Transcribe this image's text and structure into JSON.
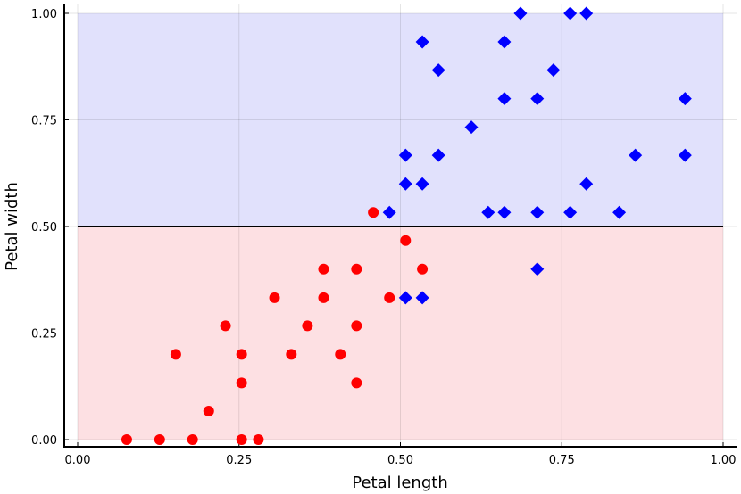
{
  "chart_data": {
    "type": "scatter",
    "xlabel": "Petal length",
    "ylabel": "Petal width",
    "xlim": [
      0,
      1
    ],
    "ylim": [
      0,
      1
    ],
    "xticks": [
      "0.00",
      "0.25",
      "0.50",
      "0.75",
      "1.00"
    ],
    "yticks": [
      "0.00",
      "0.25",
      "0.50",
      "0.75",
      "1.00"
    ],
    "grid": true,
    "decision_boundary_y": 0.5,
    "regions": [
      {
        "y_from": 0.5,
        "y_to": 1.0,
        "color": "#e1e1fc"
      },
      {
        "y_from": 0.0,
        "y_to": 0.5,
        "color": "#fde0e3"
      }
    ],
    "series": [
      {
        "marker": "circle",
        "color": "#ff0000",
        "points": [
          [
            0.076,
            0.0
          ],
          [
            0.127,
            0.0
          ],
          [
            0.178,
            0.0
          ],
          [
            0.254,
            0.0
          ],
          [
            0.28,
            0.0
          ],
          [
            0.203,
            0.067
          ],
          [
            0.254,
            0.133
          ],
          [
            0.432,
            0.133
          ],
          [
            0.152,
            0.2
          ],
          [
            0.254,
            0.2
          ],
          [
            0.331,
            0.2
          ],
          [
            0.407,
            0.2
          ],
          [
            0.229,
            0.267
          ],
          [
            0.356,
            0.267
          ],
          [
            0.432,
            0.267
          ],
          [
            0.305,
            0.333
          ],
          [
            0.381,
            0.333
          ],
          [
            0.483,
            0.333
          ],
          [
            0.381,
            0.4
          ],
          [
            0.432,
            0.4
          ],
          [
            0.534,
            0.4
          ],
          [
            0.508,
            0.467
          ],
          [
            0.458,
            0.533
          ]
        ]
      },
      {
        "marker": "diamond",
        "color": "#0000ff",
        "points": [
          [
            0.508,
            0.333
          ],
          [
            0.534,
            0.333
          ],
          [
            0.712,
            0.4
          ],
          [
            0.483,
            0.533
          ],
          [
            0.636,
            0.533
          ],
          [
            0.661,
            0.533
          ],
          [
            0.712,
            0.533
          ],
          [
            0.763,
            0.533
          ],
          [
            0.839,
            0.533
          ],
          [
            0.508,
            0.6
          ],
          [
            0.534,
            0.6
          ],
          [
            0.788,
            0.6
          ],
          [
            0.508,
            0.667
          ],
          [
            0.559,
            0.667
          ],
          [
            0.864,
            0.667
          ],
          [
            0.941,
            0.667
          ],
          [
            0.61,
            0.733
          ],
          [
            0.661,
            0.8
          ],
          [
            0.712,
            0.8
          ],
          [
            0.941,
            0.8
          ],
          [
            0.559,
            0.867
          ],
          [
            0.737,
            0.867
          ],
          [
            0.534,
            0.933
          ],
          [
            0.661,
            0.933
          ],
          [
            0.686,
            1.0
          ],
          [
            0.763,
            1.0
          ],
          [
            0.788,
            1.0
          ]
        ]
      }
    ]
  }
}
